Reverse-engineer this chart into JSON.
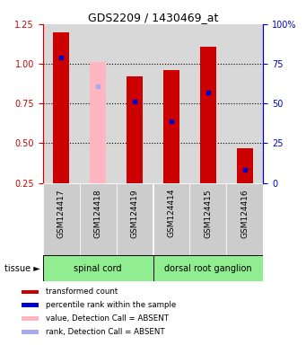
{
  "title": "GDS2209 / 1430469_at",
  "samples": [
    "GSM124417",
    "GSM124418",
    "GSM124419",
    "GSM124414",
    "GSM124415",
    "GSM124416"
  ],
  "ylim_left": [
    0.25,
    1.25
  ],
  "ylim_right": [
    0,
    100
  ],
  "yticks_left": [
    0.25,
    0.5,
    0.75,
    1.0,
    1.25
  ],
  "yticks_right": [
    0,
    25,
    50,
    75,
    100
  ],
  "base": 0.25,
  "red_bar_tops": [
    1.2,
    0.0,
    0.92,
    0.96,
    1.11,
    0.47
  ],
  "blue_marker_y": [
    1.04,
    0.0,
    0.76,
    0.64,
    0.82,
    0.33
  ],
  "absent_detection": [
    false,
    true,
    false,
    false,
    false,
    false
  ],
  "pink_bar_tops": [
    0.0,
    1.01,
    0.0,
    0.0,
    0.0,
    0.0
  ],
  "light_blue_marker_y": [
    0.0,
    0.86,
    0.0,
    0.0,
    0.0,
    0.0
  ],
  "tissue_groups": [
    {
      "label": "spinal cord",
      "start": 0,
      "end": 3
    },
    {
      "label": "dorsal root ganglion",
      "start": 3,
      "end": 6
    }
  ],
  "bar_color_red": "#CC0000",
  "bar_color_pink": "#FFB6C1",
  "marker_color_blue": "#0000CC",
  "marker_color_light_blue": "#AAAAEE",
  "bar_width": 0.45,
  "legend_items": [
    {
      "color": "#CC0000",
      "label": "transformed count"
    },
    {
      "color": "#0000CC",
      "label": "percentile rank within the sample"
    },
    {
      "color": "#FFB6C1",
      "label": "value, Detection Call = ABSENT"
    },
    {
      "color": "#AAAAEE",
      "label": "rank, Detection Call = ABSENT"
    }
  ],
  "left_axis_color": "#CC0000",
  "right_axis_color": "#0000CC",
  "background_color": "#ffffff",
  "plot_bg_color": "#d8d8d8",
  "label_bg_color": "#cccccc",
  "tissue_color": "#90EE90",
  "figsize": [
    3.41,
    3.84
  ],
  "dpi": 100
}
